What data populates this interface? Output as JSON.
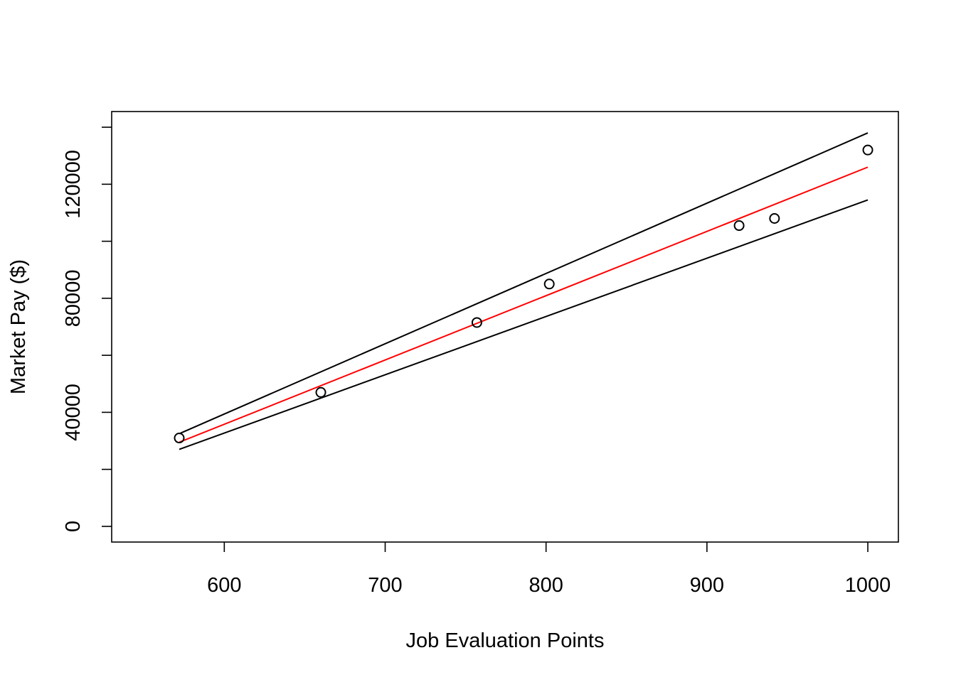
{
  "chart_data": {
    "type": "scatter",
    "xlabel": "Job Evaluation Points",
    "ylabel": "Market Pay ($)",
    "xlim": [
      530,
      1019
    ],
    "ylim": [
      -5500,
      145500
    ],
    "x_ticks": [
      600,
      700,
      800,
      900,
      1000
    ],
    "y_ticks": [
      0,
      20000,
      40000,
      60000,
      80000,
      100000,
      120000,
      140000
    ],
    "y_tick_labels": [
      "0",
      "",
      "40000",
      "",
      "80000",
      "",
      "120000",
      ""
    ],
    "points": [
      {
        "x": 572,
        "y": 31000
      },
      {
        "x": 660,
        "y": 47000
      },
      {
        "x": 757,
        "y": 71500
      },
      {
        "x": 802,
        "y": 85000
      },
      {
        "x": 920,
        "y": 105500
      },
      {
        "x": 942,
        "y": 108000
      },
      {
        "x": 1000,
        "y": 132000
      }
    ],
    "lines": [
      {
        "kind": "fit",
        "color": "#ff0000",
        "x": [
          572,
          1000
        ],
        "y": [
          29500,
          126000
        ]
      },
      {
        "kind": "upper",
        "color": "#000000",
        "x": [
          572,
          1000
        ],
        "y": [
          32500,
          138000
        ]
      },
      {
        "kind": "lower",
        "color": "#000000",
        "x": [
          572,
          1000
        ],
        "y": [
          27000,
          114500
        ]
      }
    ],
    "grid": false,
    "legend": "none"
  }
}
